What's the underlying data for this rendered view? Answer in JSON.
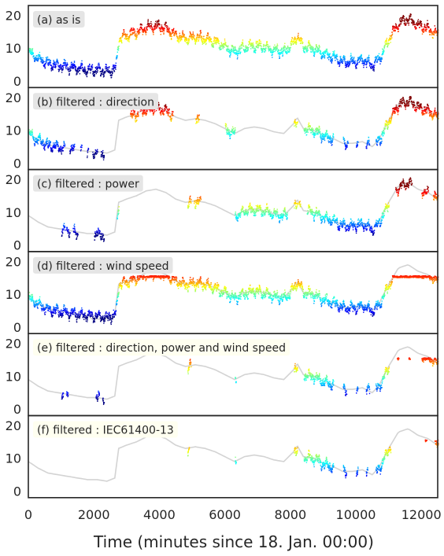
{
  "chart_data": {
    "type": "scatter",
    "xlabel": "Time (minutes since 18. Jan. 00:00)",
    "xlim": [
      0,
      12500
    ],
    "ylim": [
      -2,
      23
    ],
    "xticks": [
      0,
      2000,
      4000,
      6000,
      8000,
      10000,
      12000
    ],
    "yticks": [
      0,
      10,
      20
    ],
    "colormap": "jet",
    "color_range": [
      3,
      18
    ],
    "trace_color": "#d3d3d3",
    "panels": [
      {
        "label": "(a) as is",
        "label_bg": "#e5e5e5",
        "segments": [
          [
            0,
            12500
          ]
        ],
        "trace": false,
        "gaps": []
      },
      {
        "label": "(b) filtered : direction",
        "label_bg": "#e5e5e5",
        "segments": [
          [
            0,
            1100
          ],
          [
            1250,
            1400
          ],
          [
            1580,
            1620
          ],
          [
            1780,
            1820
          ],
          [
            1950,
            2100
          ],
          [
            2200,
            2300
          ],
          [
            3100,
            3350
          ],
          [
            3400,
            4400
          ],
          [
            5100,
            5200
          ],
          [
            6000,
            6300
          ],
          [
            8100,
            8200
          ],
          [
            8400,
            9300
          ],
          [
            9600,
            9750
          ],
          [
            10000,
            10050
          ],
          [
            10300,
            10400
          ],
          [
            10600,
            12500
          ]
        ],
        "trace": true,
        "gaps": []
      },
      {
        "label": "(c) filtered : power",
        "label_bg": "#e5e5e5",
        "segments": [
          [
            1000,
            1100
          ],
          [
            1150,
            1250
          ],
          [
            1350,
            1500
          ],
          [
            2000,
            2300
          ],
          [
            2700,
            2750
          ],
          [
            4850,
            4950
          ],
          [
            5050,
            5250
          ],
          [
            6300,
            7900
          ],
          [
            8100,
            8200
          ],
          [
            8250,
            8300
          ],
          [
            8500,
            11000
          ],
          [
            11200,
            11700
          ],
          [
            12000,
            12200
          ],
          [
            12350,
            12500
          ]
        ],
        "trace": true,
        "gaps": []
      },
      {
        "label": "(d) filtered : wind speed",
        "label_bg": "#e5e5e5",
        "segments": [
          [
            0,
            12500
          ]
        ],
        "trace": true,
        "gaps": [
          [
            1900,
            2350
          ]
        ],
        "clip_max": 15.5
      },
      {
        "label": "(e) filtered : direction, power and wind speed",
        "label_bg": "#fffff0",
        "segments": [
          [
            1000,
            1050
          ],
          [
            1150,
            1200
          ],
          [
            2050,
            2150
          ],
          [
            2250,
            2300
          ],
          [
            4850,
            4950
          ],
          [
            6300,
            6330
          ],
          [
            8100,
            8200
          ],
          [
            8400,
            9300
          ],
          [
            9600,
            9700
          ],
          [
            10000,
            10050
          ],
          [
            10300,
            10400
          ],
          [
            10600,
            11000
          ],
          [
            11250,
            11300
          ],
          [
            11600,
            11650
          ],
          [
            12000,
            12500
          ]
        ],
        "trace": true,
        "gaps": [],
        "clip_max": 15.5
      },
      {
        "label": "(f) filtered : IEC61400-13",
        "label_bg": "#fffff0",
        "segments": [
          [
            4850,
            4900
          ],
          [
            6300,
            6330
          ],
          [
            8100,
            8200
          ],
          [
            8400,
            9300
          ],
          [
            9600,
            9700
          ],
          [
            10000,
            10050
          ],
          [
            10300,
            10350
          ],
          [
            10600,
            11050
          ],
          [
            12100,
            12150
          ],
          [
            12400,
            12500
          ]
        ],
        "trace": true,
        "gaps": [],
        "clip_max": 15.5
      }
    ]
  }
}
